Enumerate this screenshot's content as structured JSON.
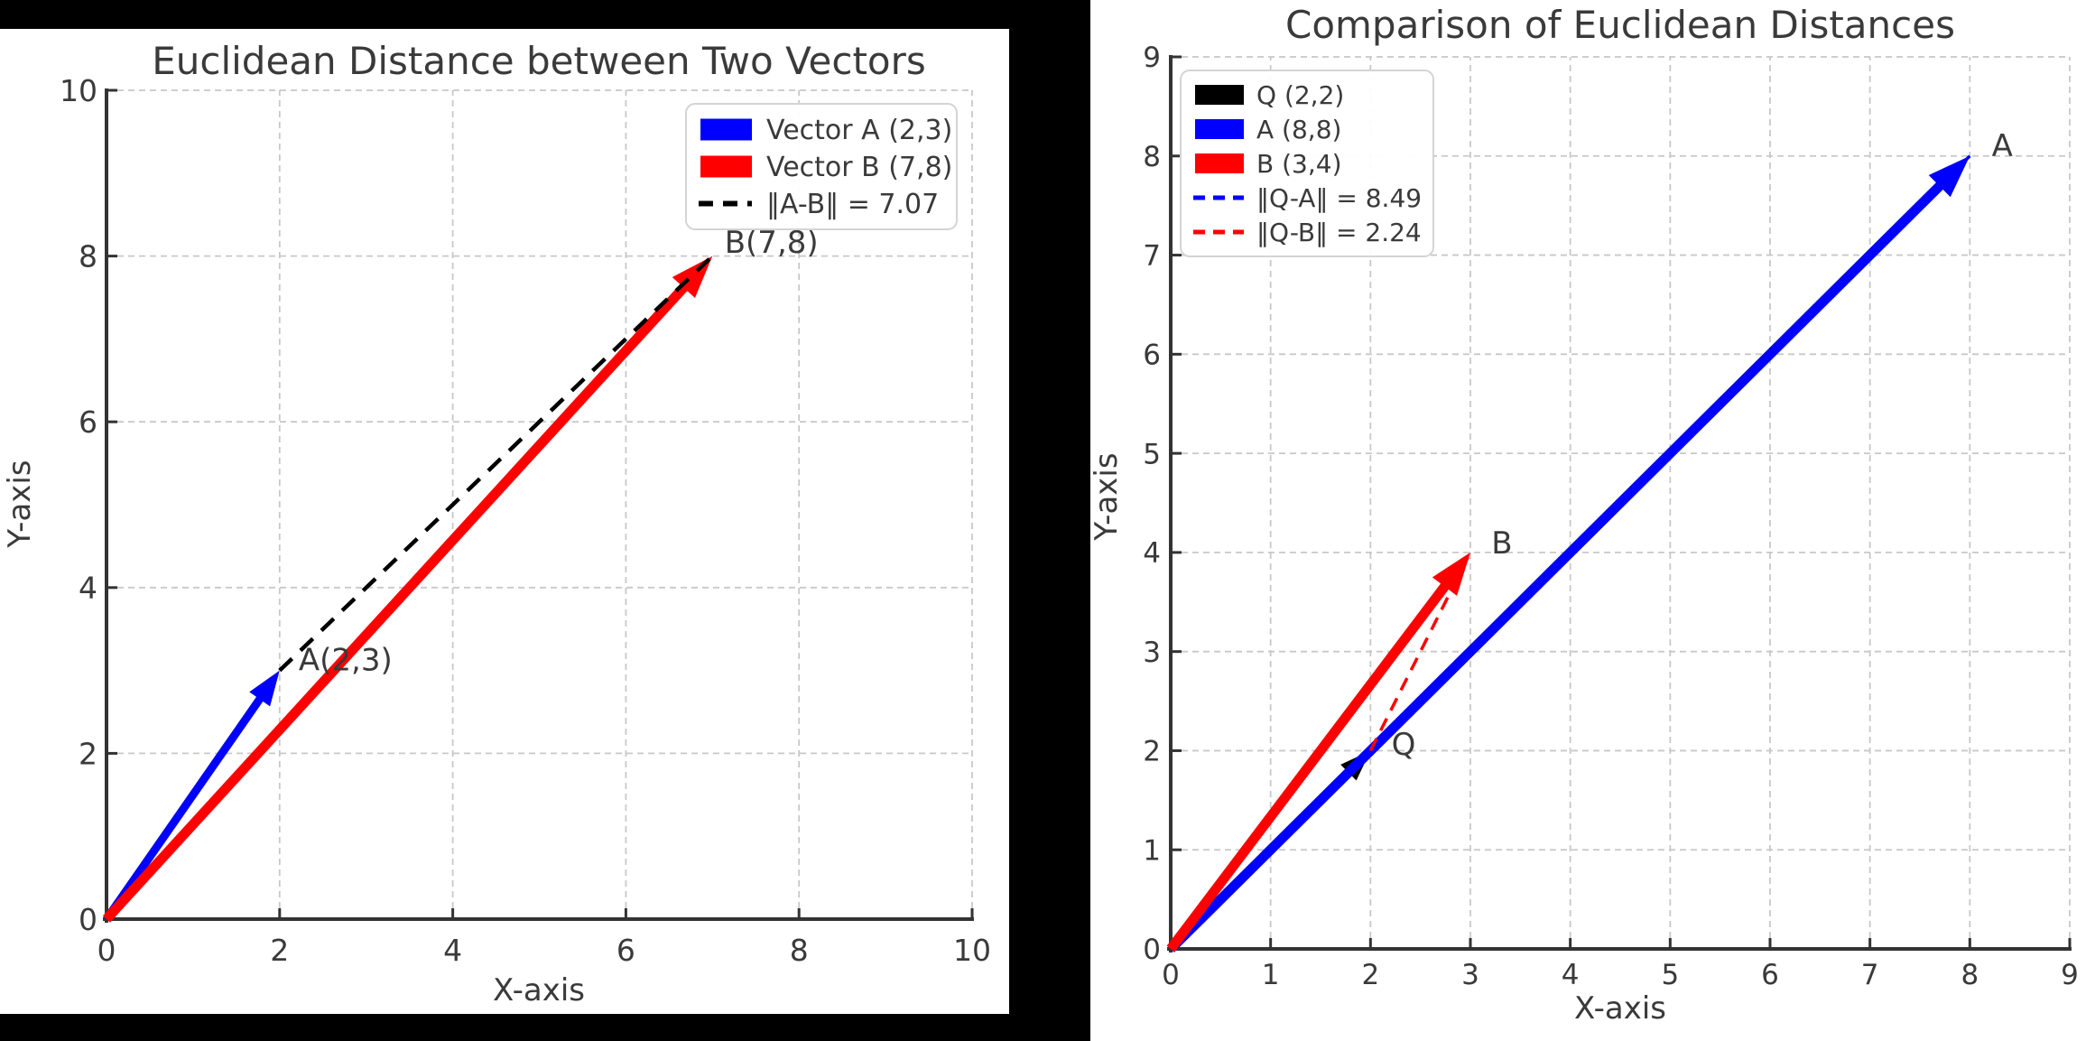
{
  "figure": {
    "background": "#000000",
    "panel_color": "#ffffff",
    "text_color": "#3a3a3a",
    "spine_color": "#333333",
    "grid_color": "#c8c8c8",
    "accent_blue": "#0000ff",
    "accent_red": "#ff0000",
    "accent_black": "#000000"
  },
  "chart_data": [
    {
      "id": "left",
      "type": "line",
      "subtype": "vector-plot",
      "title": "Euclidean Distance between Two Vectors",
      "xlabel": "X-axis",
      "ylabel": "Y-axis",
      "xlim": [
        0,
        10
      ],
      "ylim": [
        0,
        10
      ],
      "xticks": [
        0,
        2,
        4,
        6,
        8,
        10
      ],
      "yticks": [
        0,
        2,
        4,
        6,
        8,
        10
      ],
      "grid": true,
      "legend_position": "top-right",
      "vectors": [
        {
          "name": "A",
          "from": [
            0,
            0
          ],
          "to": [
            2,
            3
          ],
          "color": "#0000ff",
          "width": 9,
          "point_label": "A(2,3)",
          "label_at": [
            2.22,
            3.0
          ]
        },
        {
          "name": "B",
          "from": [
            0,
            0
          ],
          "to": [
            7,
            8
          ],
          "color": "#ff0000",
          "width": 11,
          "point_label": "B(7,8)",
          "label_at": [
            7.14,
            8.04
          ]
        }
      ],
      "distance_lines": [
        {
          "name": "A-B",
          "from": [
            2,
            3
          ],
          "to": [
            7,
            8
          ],
          "color": "#000000",
          "width": 4.5,
          "dash": "19 13",
          "value_label": "‖A-B‖ = 7.07"
        }
      ],
      "legend_entries": [
        {
          "swatch": "patch",
          "color": "#0000ff",
          "label": "Vector A (2,3)"
        },
        {
          "swatch": "patch",
          "color": "#ff0000",
          "label": "Vector B (7,8)"
        },
        {
          "swatch": "dashed",
          "color": "#000000",
          "label": "‖A-B‖ = 7.07"
        }
      ]
    },
    {
      "id": "right",
      "type": "line",
      "subtype": "vector-plot",
      "title": "Comparison of Euclidean Distances",
      "xlabel": "X-axis",
      "ylabel": "Y-axis",
      "xlim": [
        0,
        9
      ],
      "ylim": [
        0,
        9
      ],
      "xticks": [
        0,
        1,
        2,
        3,
        4,
        5,
        6,
        7,
        8,
        9
      ],
      "yticks": [
        0,
        1,
        2,
        3,
        4,
        5,
        6,
        7,
        8,
        9
      ],
      "grid": true,
      "legend_position": "top-left",
      "vectors": [
        {
          "name": "Q",
          "from": [
            0,
            0
          ],
          "to": [
            2,
            2
          ],
          "color": "#000000",
          "width": 8,
          "point_label": "Q",
          "label_at": [
            2.21,
            1.96
          ]
        },
        {
          "name": "A",
          "from": [
            0,
            0
          ],
          "to": [
            8,
            8
          ],
          "color": "#0000ff",
          "width": 11,
          "point_label": "A",
          "label_at": [
            8.22,
            8.0
          ]
        },
        {
          "name": "B",
          "from": [
            0,
            0
          ],
          "to": [
            3,
            4
          ],
          "color": "#ff0000",
          "width": 11,
          "point_label": "B",
          "label_at": [
            3.21,
            3.99
          ]
        }
      ],
      "distance_lines": [
        {
          "name": "Q-A",
          "from": [
            2,
            2
          ],
          "to": [
            8,
            8
          ],
          "color": "#0000ff",
          "width": 3.5,
          "dash": "15 10",
          "value_label": "‖Q-A‖ = 8.49"
        },
        {
          "name": "Q-B",
          "from": [
            2,
            2
          ],
          "to": [
            3,
            4
          ],
          "color": "#ff0000",
          "width": 3.5,
          "dash": "15 10",
          "value_label": "‖Q-B‖ = 2.24"
        }
      ],
      "legend_entries": [
        {
          "swatch": "patch",
          "color": "#000000",
          "label": "Q (2,2)"
        },
        {
          "swatch": "patch",
          "color": "#0000ff",
          "label": "A (8,8)"
        },
        {
          "swatch": "patch",
          "color": "#ff0000",
          "label": "B (3,4)"
        },
        {
          "swatch": "dashed",
          "color": "#0000ff",
          "label": "‖Q-A‖ = 8.49"
        },
        {
          "swatch": "dashed",
          "color": "#ff0000",
          "label": "‖Q-B‖ = 2.24"
        }
      ]
    }
  ]
}
